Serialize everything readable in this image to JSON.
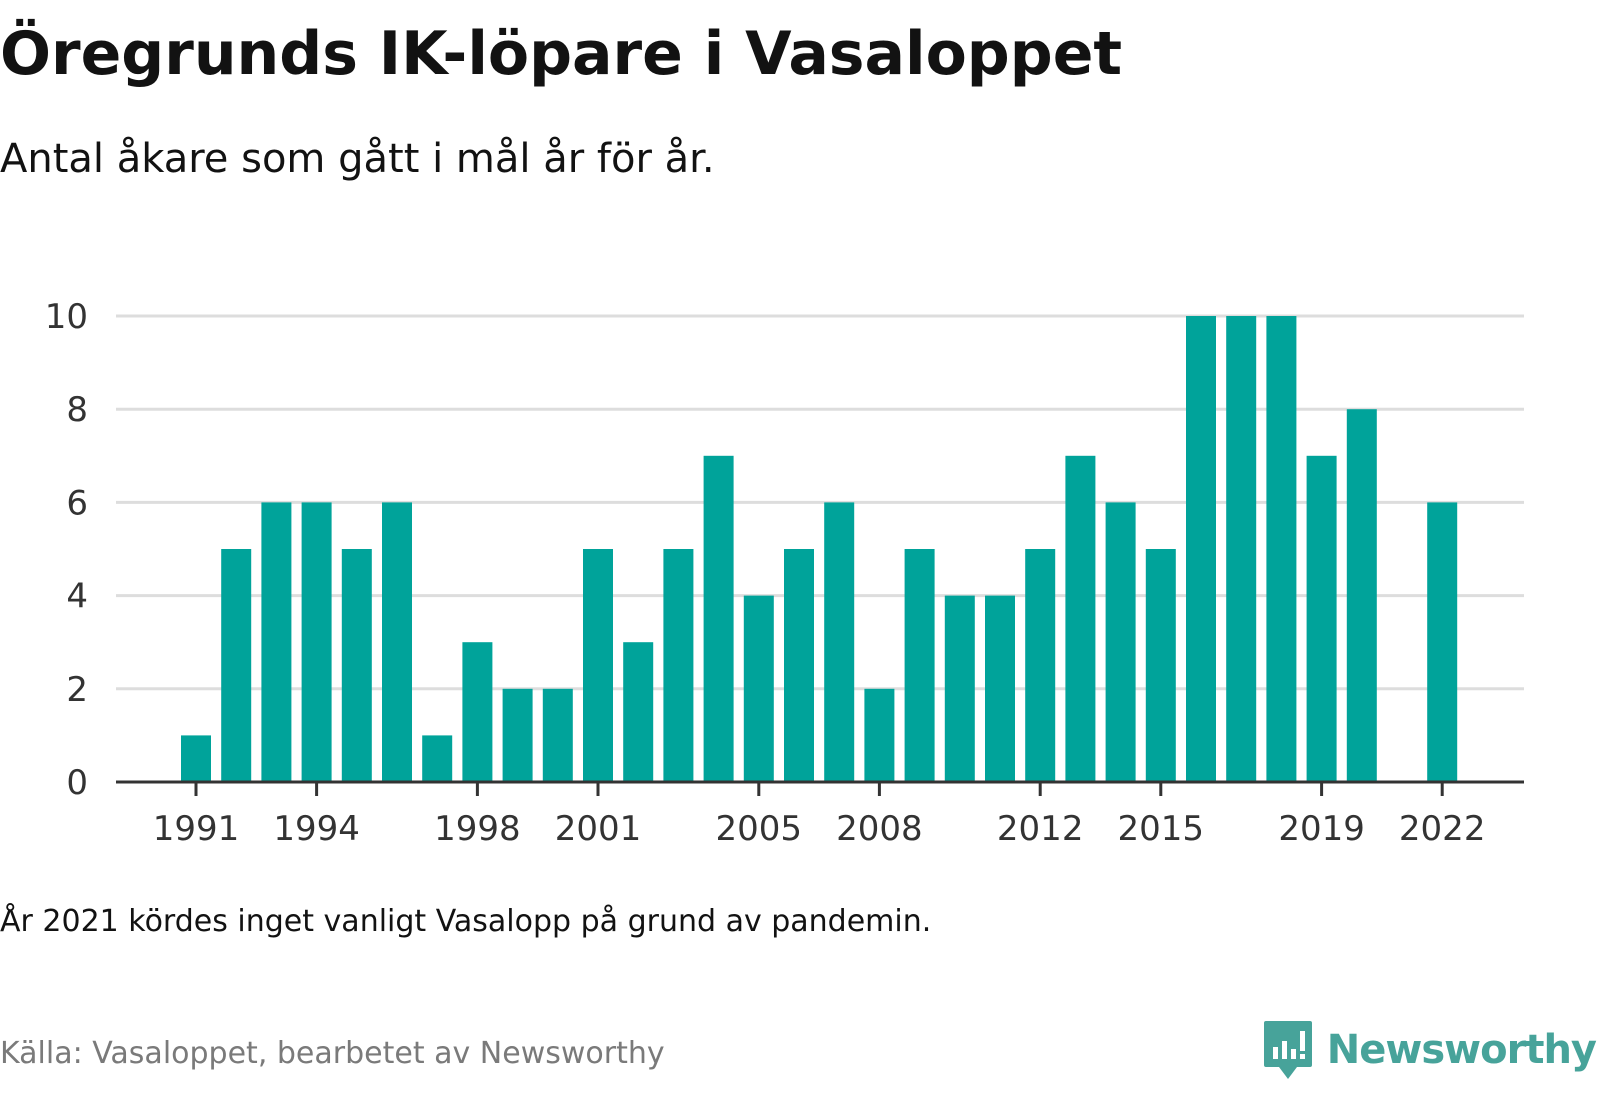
{
  "title": "Öregrunds IK-löpare i Vasaloppet",
  "subtitle": "Antal åkare som gått i mål år för år.",
  "note": "År 2021 kördes inget vanligt Vasalopp på grund av pandemin.",
  "source": "Källa: Vasaloppet, bearbetet av Newsworthy",
  "brand": {
    "name": "Newsworthy",
    "icon": "newsworthy-logo-icon",
    "color": "#47a39a"
  },
  "colors": {
    "bar": "#00a39a",
    "grid": "#dddddd",
    "axis": "#333333"
  },
  "chart_data": {
    "type": "bar",
    "title": "Öregrunds IK-löpare i Vasaloppet",
    "subtitle": "Antal åkare som gått i mål år för år.",
    "xlabel": "",
    "ylabel": "",
    "x": [
      1991,
      1992,
      1993,
      1994,
      1995,
      1996,
      1997,
      1998,
      1999,
      2000,
      2001,
      2002,
      2003,
      2004,
      2005,
      2006,
      2007,
      2008,
      2009,
      2010,
      2011,
      2012,
      2013,
      2014,
      2015,
      2016,
      2017,
      2018,
      2019,
      2020,
      2021,
      2022
    ],
    "values": [
      1,
      5,
      6,
      6,
      5,
      6,
      1,
      3,
      2,
      2,
      5,
      3,
      5,
      7,
      4,
      5,
      6,
      2,
      5,
      4,
      4,
      5,
      7,
      6,
      5,
      10,
      10,
      10,
      7,
      8,
      null,
      6
    ],
    "xticks": [
      "1991",
      "1994",
      "1998",
      "2001",
      "2005",
      "2008",
      "2012",
      "2015",
      "2019",
      "2022"
    ],
    "yticks": [
      "0",
      "2",
      "4",
      "6",
      "8",
      "10"
    ],
    "ylim": [
      0,
      10
    ],
    "grid": true,
    "legend": "none"
  }
}
